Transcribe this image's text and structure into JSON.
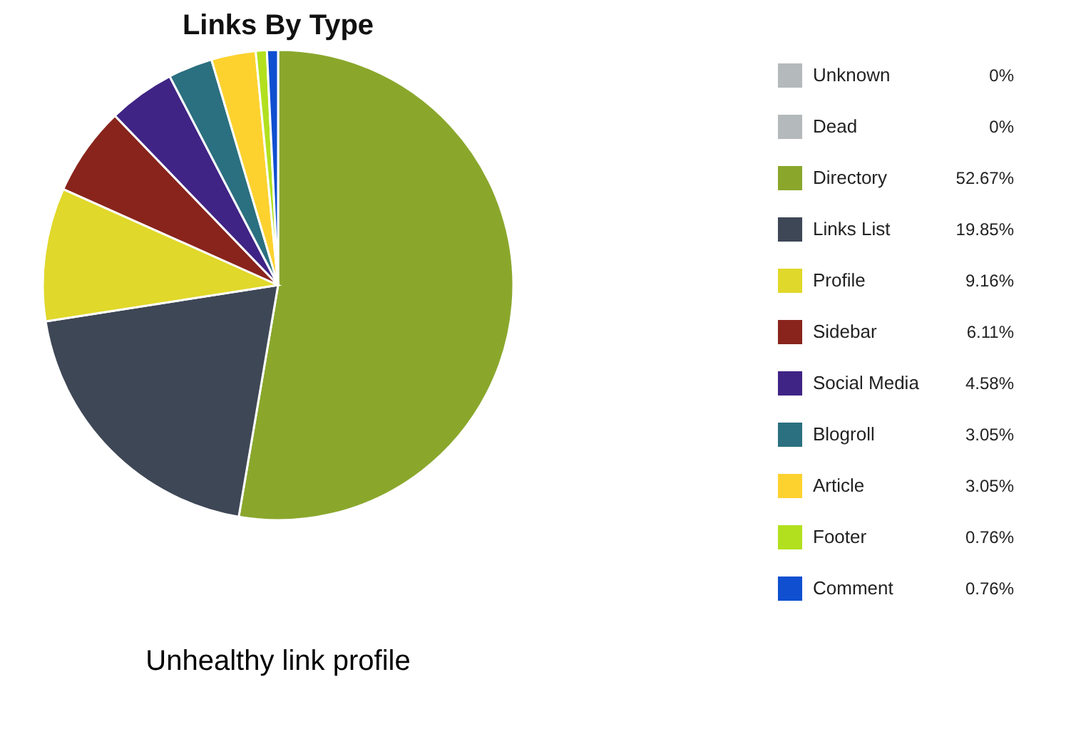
{
  "chart_data": {
    "type": "pie",
    "title": "Links By Type",
    "categories": [
      "Unknown",
      "Dead",
      "Directory",
      "Links List",
      "Profile",
      "Sidebar",
      "Social Media",
      "Blogroll",
      "Article",
      "Footer",
      "Comment"
    ],
    "values": [
      0,
      0,
      52.67,
      19.85,
      9.16,
      6.11,
      4.58,
      3.05,
      3.05,
      0.76,
      0.76
    ],
    "value_labels": [
      "0%",
      "0%",
      "52.67%",
      "19.85%",
      "9.16%",
      "6.11%",
      "4.58%",
      "3.05%",
      "3.05%",
      "0.76%",
      "0.76%"
    ],
    "colors": [
      "#b4b9bb",
      "#b4b9bb",
      "#8aa72c",
      "#3e4756",
      "#e0d82a",
      "#88241c",
      "#3f2485",
      "#2b7080",
      "#fdd22f",
      "#b2e01f",
      "#0f4fd0"
    ],
    "legend": "right",
    "annotations": [
      "Unhealthy link profile"
    ]
  }
}
